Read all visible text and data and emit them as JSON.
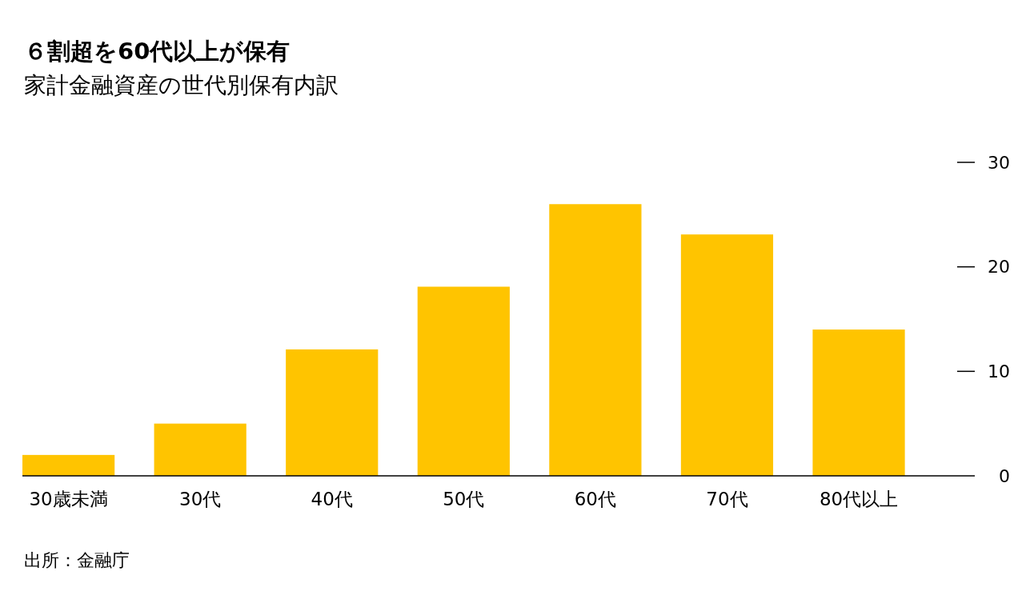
{
  "chart_data": {
    "type": "bar",
    "title": "６割超を60代以上が保有",
    "subtitle": "家計金融資産の世代別保有内訳",
    "categories": [
      "30歳未満",
      "30代",
      "40代",
      "50代",
      "60代",
      "70代",
      "80代以上"
    ],
    "values": [
      2.0,
      5.0,
      12.1,
      18.1,
      26.0,
      23.1,
      14.0
    ],
    "color": "#ffc400",
    "ylim": [
      0,
      30
    ],
    "yticks": [
      0,
      10,
      20,
      30
    ],
    "annotations": [
      "出所：金融庁"
    ]
  }
}
